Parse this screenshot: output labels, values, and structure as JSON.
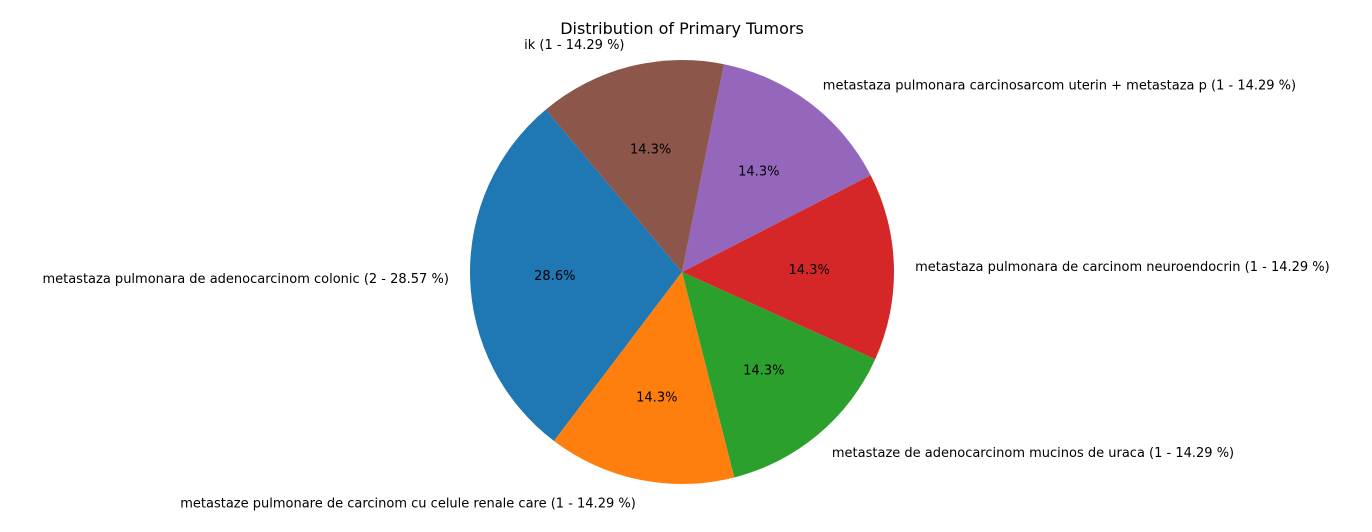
{
  "chart_data": {
    "type": "pie",
    "title": "Distribution of Primary Tumors",
    "start_angle_deg": 130,
    "direction": "counterclockwise",
    "slices": [
      {
        "label": "metastaza pulmonara de adenocarcinom colonic (2 - 28.57 %)",
        "value": 2,
        "pct_label": "28.6%",
        "color": "#1f77b4"
      },
      {
        "label": "metastaze pulmonare de carcinom cu celule renale care (1 - 14.29 %)",
        "value": 1,
        "pct_label": "14.3%",
        "color": "#ff7f0e"
      },
      {
        "label": "metastaze de adenocarcinom mucinos de uraca (1 - 14.29 %)",
        "value": 1,
        "pct_label": "14.3%",
        "color": "#2ca02c"
      },
      {
        "label": "metastaza pulmonara de carcinom neuroendocrin (1 - 14.29 %)",
        "value": 1,
        "pct_label": "14.3%",
        "color": "#d62728"
      },
      {
        "label": "metastaza pulmonara carcinosarcom uterin + metastaza p (1 - 14.29 %)",
        "value": 1,
        "pct_label": "14.3%",
        "color": "#9467bd"
      },
      {
        "label": "ik (1 - 14.29 %)",
        "value": 1,
        "pct_label": "14.3%",
        "color": "#8c564b"
      }
    ]
  }
}
